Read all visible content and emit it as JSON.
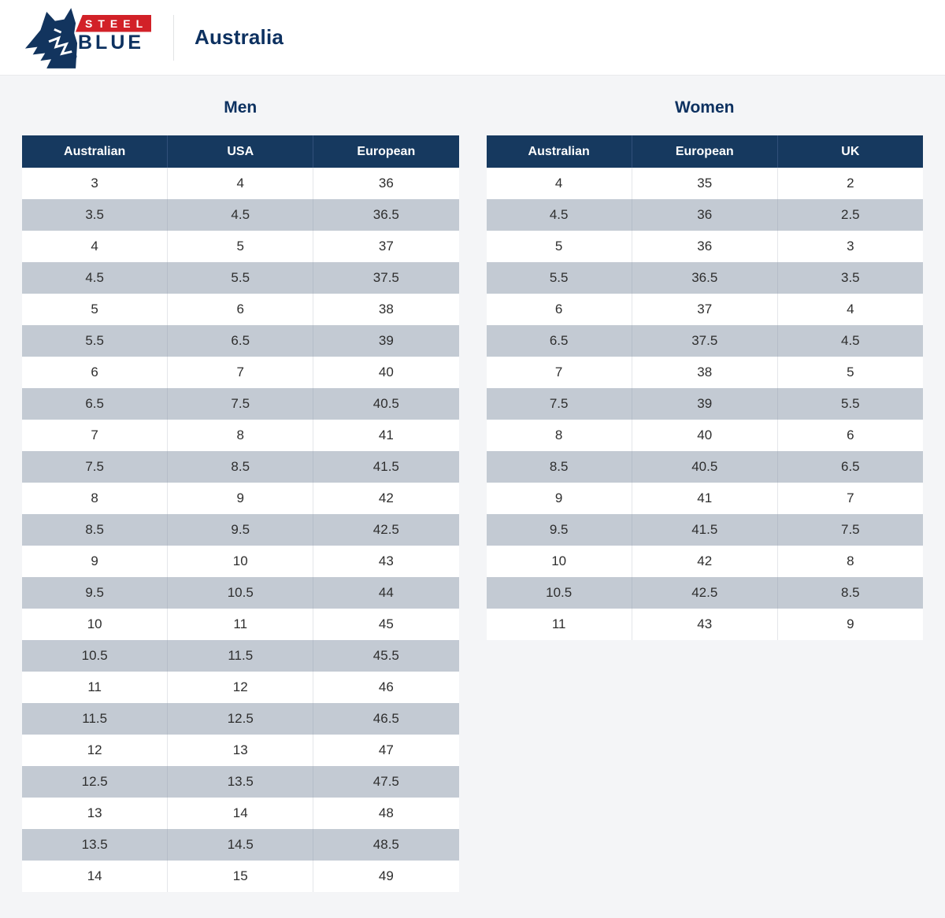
{
  "colors": {
    "page_bg": "#f4f5f7",
    "header_navy": "#16395f",
    "navy_text": "#0d3160",
    "row_stripe": "#c3cad3",
    "logo_red": "#d22128"
  },
  "header": {
    "logo": {
      "steel_label": "STEEL",
      "blue_label": "BLUE",
      "registered_mark": "®"
    },
    "region_label": "Australia"
  },
  "tables": {
    "men": {
      "title": "Men",
      "columns": [
        "Australian",
        "USA",
        "European"
      ],
      "rows": [
        [
          "3",
          "4",
          "36"
        ],
        [
          "3.5",
          "4.5",
          "36.5"
        ],
        [
          "4",
          "5",
          "37"
        ],
        [
          "4.5",
          "5.5",
          "37.5"
        ],
        [
          "5",
          "6",
          "38"
        ],
        [
          "5.5",
          "6.5",
          "39"
        ],
        [
          "6",
          "7",
          "40"
        ],
        [
          "6.5",
          "7.5",
          "40.5"
        ],
        [
          "7",
          "8",
          "41"
        ],
        [
          "7.5",
          "8.5",
          "41.5"
        ],
        [
          "8",
          "9",
          "42"
        ],
        [
          "8.5",
          "9.5",
          "42.5"
        ],
        [
          "9",
          "10",
          "43"
        ],
        [
          "9.5",
          "10.5",
          "44"
        ],
        [
          "10",
          "11",
          "45"
        ],
        [
          "10.5",
          "11.5",
          "45.5"
        ],
        [
          "11",
          "12",
          "46"
        ],
        [
          "11.5",
          "12.5",
          "46.5"
        ],
        [
          "12",
          "13",
          "47"
        ],
        [
          "12.5",
          "13.5",
          "47.5"
        ],
        [
          "13",
          "14",
          "48"
        ],
        [
          "13.5",
          "14.5",
          "48.5"
        ],
        [
          "14",
          "15",
          "49"
        ]
      ]
    },
    "women": {
      "title": "Women",
      "columns": [
        "Australian",
        "European",
        "UK"
      ],
      "rows": [
        [
          "4",
          "35",
          "2"
        ],
        [
          "4.5",
          "36",
          "2.5"
        ],
        [
          "5",
          "36",
          "3"
        ],
        [
          "5.5",
          "36.5",
          "3.5"
        ],
        [
          "6",
          "37",
          "4"
        ],
        [
          "6.5",
          "37.5",
          "4.5"
        ],
        [
          "7",
          "38",
          "5"
        ],
        [
          "7.5",
          "39",
          "5.5"
        ],
        [
          "8",
          "40",
          "6"
        ],
        [
          "8.5",
          "40.5",
          "6.5"
        ],
        [
          "9",
          "41",
          "7"
        ],
        [
          "9.5",
          "41.5",
          "7.5"
        ],
        [
          "10",
          "42",
          "8"
        ],
        [
          "10.5",
          "42.5",
          "8.5"
        ],
        [
          "11",
          "43",
          "9"
        ]
      ]
    }
  }
}
